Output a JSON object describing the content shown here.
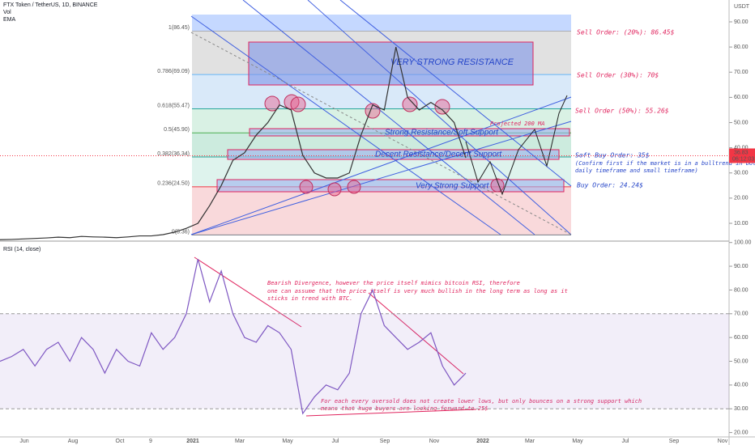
{
  "header": {
    "symbol": "FTX Token / TetherUS, 1D, BINANCE",
    "vol": "Vol",
    "ema": "EMA",
    "currency": "USDT",
    "countdown": "06:12:03"
  },
  "current_price": 36.83,
  "chart_data": [
    {
      "type": "line",
      "title": "FTX Token / TetherUS, 1D, BINANCE",
      "color": "#333333",
      "values": [
        3.5,
        3.6,
        3.8,
        4,
        4.2,
        4.5,
        4.3,
        4.8,
        4.6,
        4.5,
        4.3,
        4.6,
        5,
        5,
        5.5,
        6.5,
        8,
        10,
        17,
        25,
        35,
        38,
        45,
        50,
        57,
        55,
        37,
        30,
        28,
        28,
        30,
        45,
        57,
        55,
        80,
        60,
        55,
        58,
        55,
        50,
        36
      ],
      "ylim": [
        2.93,
        98.67
      ],
      "yticks": [
        {
          "value": 90,
          "label": "90.00"
        },
        {
          "value": 80,
          "label": "80.00"
        },
        {
          "value": 70,
          "label": "70.00"
        },
        {
          "value": 60,
          "label": "60.00"
        },
        {
          "value": 50,
          "label": "50.00"
        },
        {
          "value": 40,
          "label": "40.00"
        },
        {
          "value": 30,
          "label": "30.00"
        },
        {
          "value": 20,
          "label": "20.00"
        },
        {
          "value": 10,
          "label": "10.00"
        }
      ],
      "fib_levels": [
        {
          "value": 86.45,
          "label": "1(86.45)"
        },
        {
          "value": 69.09,
          "label": "0.786(69.09)"
        },
        {
          "value": 55.47,
          "label": "0.618(55.47)"
        },
        {
          "value": 45.9,
          "label": "0.5(45.90)"
        },
        {
          "value": 36.34,
          "label": "0.382(36.34)"
        },
        {
          "value": 24.5,
          "label": "0.236(24.50)"
        },
        {
          "value": 5.36,
          "label": "0(5.36)"
        }
      ]
    },
    {
      "type": "line",
      "title": "RSI (14, close)",
      "color": "#7e57c2",
      "values": [
        50,
        52,
        55,
        48,
        55,
        58,
        50,
        60,
        55,
        45,
        55,
        50,
        48,
        62,
        55,
        60,
        70,
        93,
        75,
        88,
        70,
        60,
        58,
        65,
        62,
        55,
        28,
        35,
        40,
        38,
        45,
        70,
        80,
        65,
        60,
        55,
        58,
        62,
        48,
        40,
        45
      ],
      "ylim": [
        20,
        100
      ],
      "band": [
        30,
        70
      ],
      "yticks": [
        {
          "value": 100,
          "label": "100.00"
        },
        {
          "value": 90,
          "label": "90.00"
        },
        {
          "value": 80,
          "label": "80.00"
        },
        {
          "value": 70,
          "label": "70.00"
        },
        {
          "value": 60,
          "label": "60.00"
        },
        {
          "value": 50,
          "label": "50.00"
        },
        {
          "value": 40,
          "label": "40.00"
        },
        {
          "value": 30,
          "label": "30.00"
        },
        {
          "value": 20,
          "label": "20.00"
        }
      ]
    }
  ],
  "xlabels": [
    "Jun",
    "Aug",
    "Oct",
    "9",
    "2021",
    "Mar",
    "May",
    "Jul",
    "Sep",
    "Nov",
    "2022",
    "Mar",
    "May",
    "Jul",
    "Sep",
    "Nov"
  ],
  "zones": {
    "very_strong_resistance": "VERY STRONG RESISTANCE",
    "strong_resistance": "Strong Resistance/Soft Support",
    "projected_ma": "Projected 200 MA",
    "decent": "Decent Resistance/Decent Support",
    "very_strong_support": "Very Strong Support"
  },
  "orders": {
    "sell20": "Sell Order: (20%): 86.45$",
    "sell30": "Sell Order (30%): 70$",
    "sell50": "Sell Order (50%): 55.26$",
    "soft_buy": "Soft Buy Order: 35$",
    "confirm1": "(Confirm first if the market is in a bulltrend in both",
    "confirm2": "daily timeframe and small timeframe)",
    "buy": "Buy Order: 24.24$"
  },
  "rsi_notes": {
    "bearish1": "Bearish Divergence, however the price itself mimics bitcoin RSI, therefore",
    "bearish2": "one can assume that the price itself is very much bullish in the long term as long as it",
    "bearish3": "sticks in trend with BTC.",
    "oversold1": "For each every oversold does not create lower lows, but only bounces on a strong support which",
    "oversold2": "means that huge buyers are looking forward to 25$"
  }
}
